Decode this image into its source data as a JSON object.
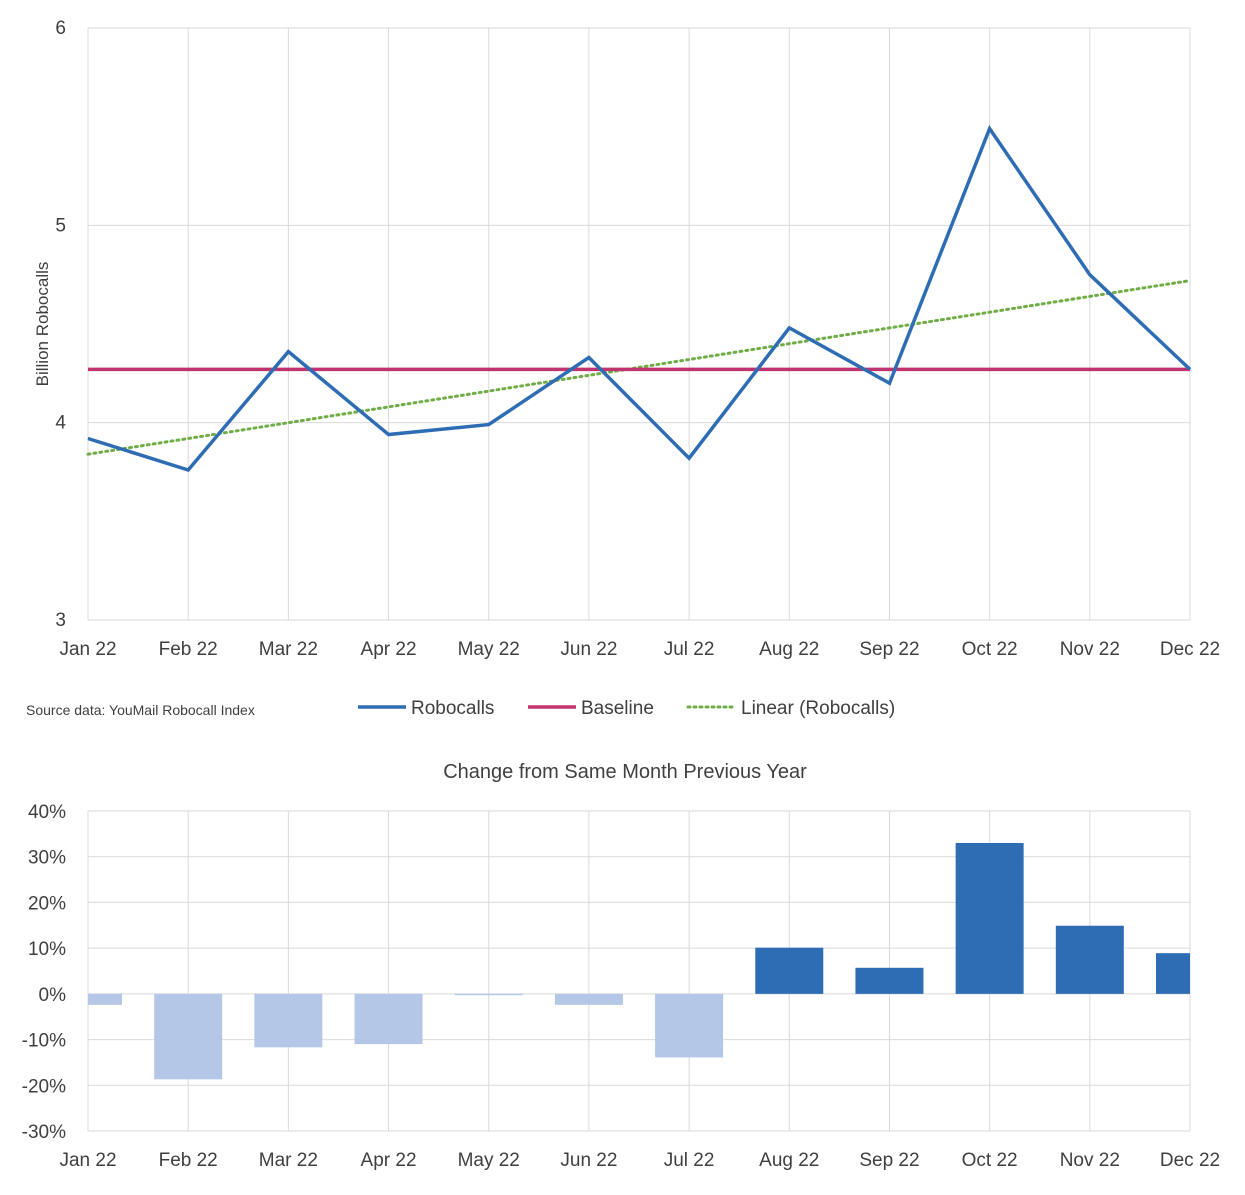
{
  "source_note": "Source data: YouMail Robocall Index",
  "chart_data": [
    {
      "type": "line",
      "title": "",
      "ylabel": "Billion Robocalls",
      "xlabel": "",
      "ylim": [
        3,
        6
      ],
      "yticks": [
        3,
        4,
        5,
        6
      ],
      "grid": true,
      "legend_position": "bottom",
      "categories": [
        "Jan 22",
        "Feb 22",
        "Mar 22",
        "Apr 22",
        "May 22",
        "Jun 22",
        "Jul 22",
        "Aug 22",
        "Sep 22",
        "Oct 22",
        "Nov 22",
        "Dec 22"
      ],
      "series": [
        {
          "name": "Robocalls",
          "color": "#2e6db4",
          "style": "solid",
          "values": [
            3.92,
            3.76,
            4.36,
            3.94,
            3.99,
            4.33,
            3.82,
            4.48,
            4.2,
            5.49,
            4.75,
            4.27
          ]
        },
        {
          "name": "Baseline",
          "color": "#c0336f",
          "style": "solid",
          "values": [
            4.27,
            4.27,
            4.27,
            4.27,
            4.27,
            4.27,
            4.27,
            4.27,
            4.27,
            4.27,
            4.27,
            4.27
          ]
        },
        {
          "name": "Linear (Robocalls)",
          "color": "#70ad47",
          "style": "dotted",
          "values": [
            3.84,
            3.92,
            4.0,
            4.08,
            4.16,
            4.24,
            4.32,
            4.4,
            4.48,
            4.56,
            4.64,
            4.72
          ]
        }
      ]
    },
    {
      "type": "bar",
      "title": "Change from Same Month Previous Year",
      "xlabel": "",
      "ylabel": "",
      "ylim": [
        -30,
        40
      ],
      "yticks": [
        -30,
        -20,
        -10,
        0,
        10,
        20,
        30,
        40
      ],
      "ytick_labels": [
        "-30%",
        "-20%",
        "-10%",
        "0%",
        "10%",
        "20%",
        "30%",
        "40%"
      ],
      "grid": true,
      "categories": [
        "Jan 22",
        "Feb 22",
        "Mar 22",
        "Apr 22",
        "May 22",
        "Jun 22",
        "Jul 22",
        "Aug 22",
        "Sep 22",
        "Oct 22",
        "Nov 22",
        "Dec 22"
      ],
      "values": [
        -2.4,
        -18.7,
        -11.7,
        -11.0,
        -0.3,
        -2.4,
        -13.9,
        10.1,
        5.7,
        33.0,
        14.9,
        8.9
      ],
      "positive_color": "#2e6db4",
      "negative_color": "#b4c7e7"
    }
  ]
}
